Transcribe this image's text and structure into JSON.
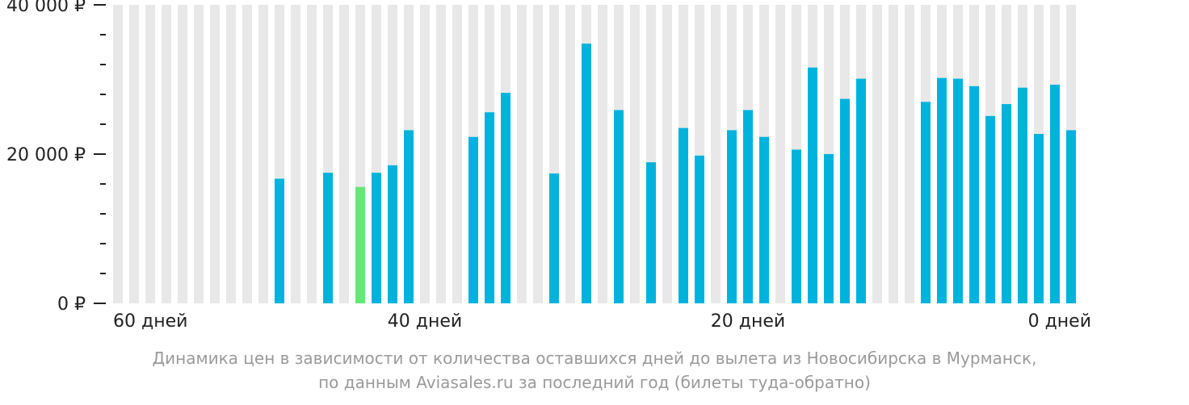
{
  "chart_data": {
    "type": "bar",
    "categories": [
      59,
      58,
      57,
      56,
      55,
      54,
      53,
      52,
      51,
      50,
      49,
      48,
      47,
      46,
      45,
      44,
      43,
      42,
      41,
      40,
      39,
      38,
      37,
      36,
      35,
      34,
      33,
      32,
      31,
      30,
      29,
      28,
      27,
      26,
      25,
      24,
      23,
      22,
      21,
      20,
      19,
      18,
      17,
      16,
      15,
      14,
      13,
      12,
      11,
      10,
      9,
      8,
      7,
      6,
      5,
      4,
      3,
      2,
      1,
      0
    ],
    "values": [
      null,
      null,
      null,
      null,
      null,
      null,
      null,
      null,
      null,
      null,
      16700,
      null,
      null,
      17500,
      null,
      15600,
      17500,
      18500,
      23200,
      null,
      null,
      null,
      22300,
      25600,
      28200,
      null,
      null,
      17400,
      null,
      34800,
      null,
      25900,
      null,
      18900,
      null,
      23500,
      19800,
      null,
      23200,
      25900,
      22300,
      null,
      20600,
      31600,
      20000,
      27400,
      30100,
      null,
      null,
      null,
      27000,
      30200,
      30100,
      29100,
      25100,
      26700,
      28900,
      22700,
      29300,
      23200
    ],
    "highlight_index": 15,
    "ylim": [
      0,
      40000
    ],
    "yticks": [
      "0 ₽",
      "20 000 ₽",
      "40 000 ₽"
    ],
    "xticks": [
      "60 дней",
      "40 дней",
      "20 дней",
      "0 дней"
    ],
    "grid": "vertical background bars",
    "colors": {
      "bar": "#00b3dd",
      "highlight": "#66e878",
      "background_bar": "#e8e8e8",
      "axis": "#222222",
      "caption": "#9a9a9a"
    }
  },
  "caption": {
    "line1": "Динамика цен в зависимости от количества оставшихся дней до вылета из Новосибирска в Мурманск,",
    "line2": "по данным Aviasales.ru за последний год (билеты туда-обратно)"
  }
}
